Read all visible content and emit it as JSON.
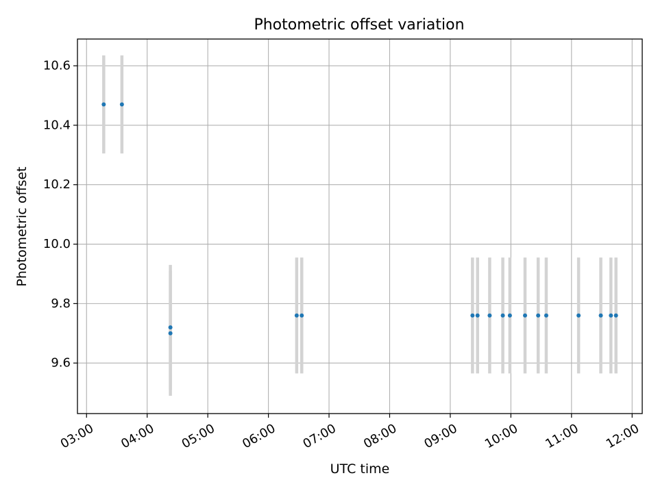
{
  "chart_data": {
    "type": "scatter",
    "title": "Photometric offset variation",
    "xlabel": "UTC time",
    "ylabel": "Photometric offset",
    "xlim": [
      "02:51",
      "12:10"
    ],
    "ylim": [
      9.43,
      10.69
    ],
    "x_ticks": [
      "03:00",
      "04:00",
      "05:00",
      "06:00",
      "07:00",
      "08:00",
      "09:00",
      "10:00",
      "11:00",
      "12:00"
    ],
    "y_ticks": [
      9.6,
      9.8,
      10.0,
      10.2,
      10.4,
      10.6
    ],
    "y_tick_labels": [
      "9.6",
      "9.8",
      "10.0",
      "10.2",
      "10.4",
      "10.6"
    ],
    "grid": true,
    "marker_color": "#1f77b4",
    "errorbar_color": "#d3d3d3",
    "series": [
      {
        "points": [
          {
            "x": "03:17",
            "y": 10.47,
            "err": 0.165
          },
          {
            "x": "03:35",
            "y": 10.47,
            "err": 0.165
          },
          {
            "x": "04:23",
            "y": 9.72,
            "err": 0.21
          },
          {
            "x": "04:23",
            "y": 9.7,
            "err": 0.21
          },
          {
            "x": "06:28",
            "y": 9.76,
            "err": 0.195
          },
          {
            "x": "06:33",
            "y": 9.76,
            "err": 0.195
          },
          {
            "x": "09:22",
            "y": 9.76,
            "err": 0.195
          },
          {
            "x": "09:27",
            "y": 9.76,
            "err": 0.195
          },
          {
            "x": "09:39",
            "y": 9.76,
            "err": 0.195
          },
          {
            "x": "09:52",
            "y": 9.76,
            "err": 0.195
          },
          {
            "x": "09:59",
            "y": 9.76,
            "err": 0.195
          },
          {
            "x": "10:14",
            "y": 9.76,
            "err": 0.195
          },
          {
            "x": "10:27",
            "y": 9.76,
            "err": 0.195
          },
          {
            "x": "10:35",
            "y": 9.76,
            "err": 0.195
          },
          {
            "x": "11:07",
            "y": 9.76,
            "err": 0.195
          },
          {
            "x": "11:29",
            "y": 9.76,
            "err": 0.195
          },
          {
            "x": "11:39",
            "y": 9.76,
            "err": 0.195
          },
          {
            "x": "11:44",
            "y": 9.76,
            "err": 0.195
          }
        ]
      }
    ]
  }
}
